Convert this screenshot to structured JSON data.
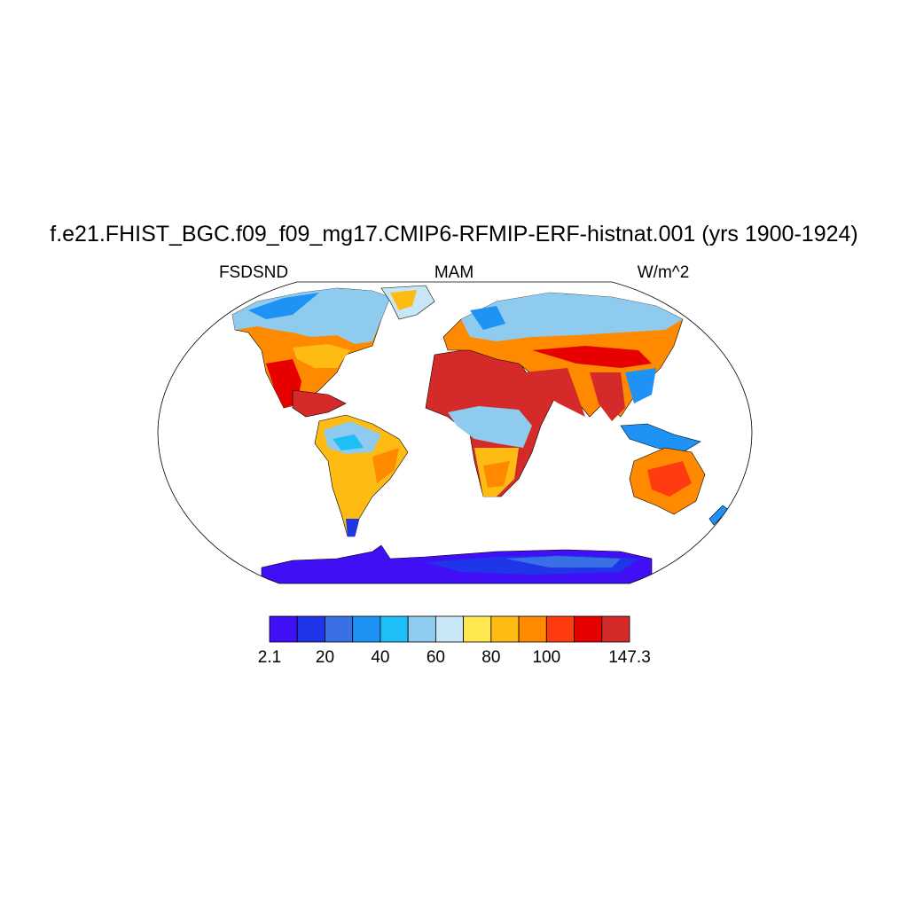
{
  "title": "f.e21.FHIST_BGC.f09_f09_mg17.CMIP6-RFMIP-ERF-histnat.001 (yrs 1900-1924)",
  "left_string": "FSDSND",
  "center_string": "MAM",
  "right_string": "W/m^2",
  "colorbar": {
    "colors": [
      "#400ff5",
      "#1f35e8",
      "#3a70e6",
      "#1e92f5",
      "#1ebef7",
      "#8ecbef",
      "#c9e6f7",
      "#ffe84f",
      "#fdbb14",
      "#ff8a00",
      "#ff3c0f",
      "#e60000",
      "#d52a2a"
    ],
    "ticks": [
      2.1,
      20,
      40,
      60,
      80,
      100,
      147.3
    ]
  }
}
